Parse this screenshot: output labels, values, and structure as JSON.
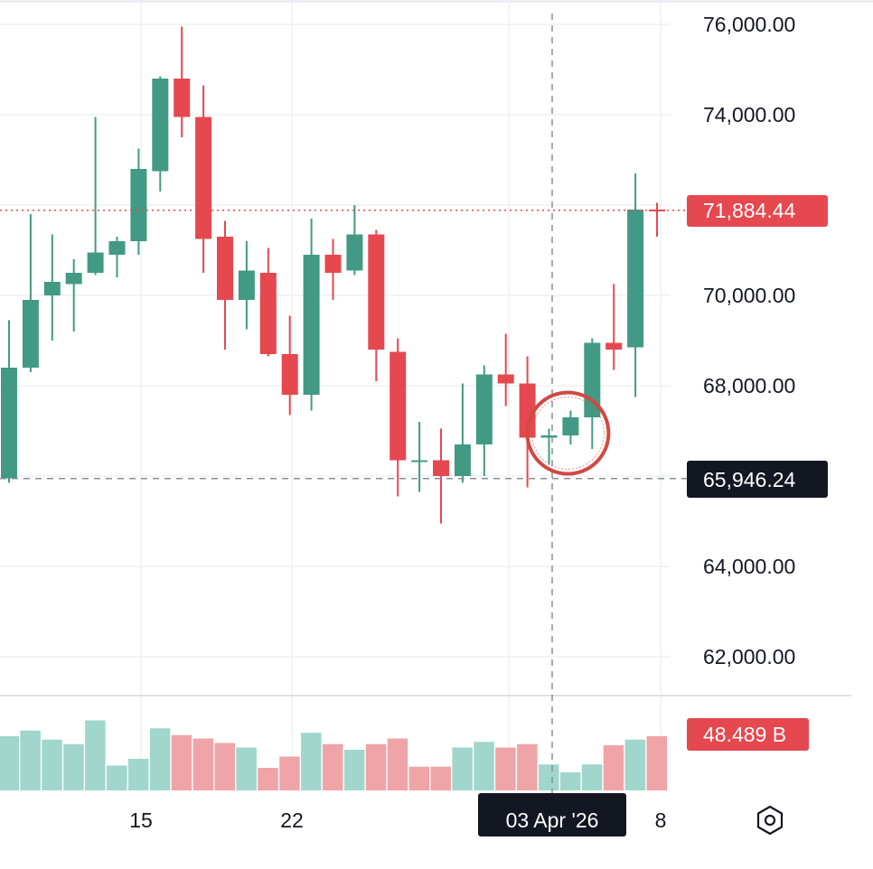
{
  "colors": {
    "up": "#429a84",
    "down": "#e5484f",
    "up_volume": "#a0d6cb",
    "down_volume": "#efa4a7",
    "grid": "#eef0f3",
    "crosshair": "#8a8d94",
    "label_dark": "#131722",
    "annotation": "#d04a43"
  },
  "price_axis": {
    "ticks": [
      "76,000.00",
      "74,000.00",
      "70,000.00",
      "68,000.00",
      "64,000.00",
      "62,000.00"
    ],
    "last_price_label": "71,884.44",
    "crosshair_price_label": "65,946.24",
    "volume_label": "48.489 B"
  },
  "time_axis": {
    "ticks": [
      "15",
      "22",
      "8"
    ],
    "crosshair_date_label": "03 Apr '26"
  },
  "settings_icon": "gear-icon",
  "chart_data": {
    "type": "candlestick",
    "ylim": [
      61000,
      76500
    ],
    "last_price": 71884.44,
    "crosshair": {
      "price": 65946.24,
      "date": "03 Apr '26"
    },
    "candles": [
      {
        "i": 0,
        "o": 65950,
        "h": 69450,
        "l": 65850,
        "c": 68400
      },
      {
        "i": 1,
        "o": 68400,
        "h": 71800,
        "l": 68300,
        "c": 69900
      },
      {
        "i": 2,
        "o": 70000,
        "h": 71350,
        "l": 69000,
        "c": 70300
      },
      {
        "i": 3,
        "o": 70250,
        "h": 70800,
        "l": 69200,
        "c": 70500
      },
      {
        "i": 4,
        "o": 70500,
        "h": 73950,
        "l": 70450,
        "c": 70950
      },
      {
        "i": 5,
        "o": 70900,
        "h": 71300,
        "l": 70400,
        "c": 71200
      },
      {
        "i": 6,
        "o": 71200,
        "h": 73250,
        "l": 70900,
        "c": 72800
      },
      {
        "i": 7,
        "o": 72750,
        "h": 74850,
        "l": 72300,
        "c": 74800
      },
      {
        "i": 8,
        "o": 74800,
        "h": 75950,
        "l": 73500,
        "c": 73950
      },
      {
        "i": 9,
        "o": 73950,
        "h": 74650,
        "l": 70500,
        "c": 71250
      },
      {
        "i": 10,
        "o": 71300,
        "h": 71650,
        "l": 68800,
        "c": 69900
      },
      {
        "i": 11,
        "o": 69900,
        "h": 71200,
        "l": 69250,
        "c": 70550
      },
      {
        "i": 12,
        "o": 70500,
        "h": 71050,
        "l": 68650,
        "c": 68700
      },
      {
        "i": 13,
        "o": 68700,
        "h": 69550,
        "l": 67350,
        "c": 67800
      },
      {
        "i": 14,
        "o": 67800,
        "h": 71700,
        "l": 67450,
        "c": 70900
      },
      {
        "i": 15,
        "o": 70900,
        "h": 71250,
        "l": 69900,
        "c": 70500
      },
      {
        "i": 16,
        "o": 70550,
        "h": 72000,
        "l": 70450,
        "c": 71350
      },
      {
        "i": 17,
        "o": 71350,
        "h": 71450,
        "l": 68100,
        "c": 68800
      },
      {
        "i": 18,
        "o": 68750,
        "h": 69050,
        "l": 65550,
        "c": 66350
      },
      {
        "i": 19,
        "o": 66350,
        "h": 67200,
        "l": 65650,
        "c": 66350
      },
      {
        "i": 20,
        "o": 66350,
        "h": 67050,
        "l": 64950,
        "c": 66000
      },
      {
        "i": 21,
        "o": 66000,
        "h": 68050,
        "l": 65850,
        "c": 66700
      },
      {
        "i": 22,
        "o": 66700,
        "h": 68450,
        "l": 66000,
        "c": 68250
      },
      {
        "i": 23,
        "o": 68250,
        "h": 69150,
        "l": 67550,
        "c": 68050
      },
      {
        "i": 24,
        "o": 68050,
        "h": 68650,
        "l": 65750,
        "c": 66850
      },
      {
        "i": 25,
        "o": 66850,
        "h": 67050,
        "l": 66250,
        "c": 66900
      },
      {
        "i": 26,
        "o": 66900,
        "h": 67450,
        "l": 66700,
        "c": 67300
      },
      {
        "i": 27,
        "o": 67300,
        "h": 69050,
        "l": 66600,
        "c": 68950
      },
      {
        "i": 28,
        "o": 68950,
        "h": 70250,
        "l": 68350,
        "c": 68800
      },
      {
        "i": 29,
        "o": 68850,
        "h": 72700,
        "l": 67750,
        "c": 71900
      },
      {
        "i": 30,
        "o": 71900,
        "h": 72050,
        "l": 71300,
        "c": 71884.44
      }
    ],
    "volume": [
      {
        "i": 0,
        "v": 0.48,
        "dir": "up"
      },
      {
        "i": 1,
        "v": 0.53,
        "dir": "up"
      },
      {
        "i": 2,
        "v": 0.45,
        "dir": "up"
      },
      {
        "i": 3,
        "v": 0.41,
        "dir": "up"
      },
      {
        "i": 4,
        "v": 0.62,
        "dir": "up"
      },
      {
        "i": 5,
        "v": 0.22,
        "dir": "up"
      },
      {
        "i": 6,
        "v": 0.28,
        "dir": "up"
      },
      {
        "i": 7,
        "v": 0.55,
        "dir": "up"
      },
      {
        "i": 8,
        "v": 0.49,
        "dir": "down"
      },
      {
        "i": 9,
        "v": 0.46,
        "dir": "down"
      },
      {
        "i": 10,
        "v": 0.42,
        "dir": "down"
      },
      {
        "i": 11,
        "v": 0.38,
        "dir": "up"
      },
      {
        "i": 12,
        "v": 0.2,
        "dir": "down"
      },
      {
        "i": 13,
        "v": 0.3,
        "dir": "down"
      },
      {
        "i": 14,
        "v": 0.51,
        "dir": "up"
      },
      {
        "i": 15,
        "v": 0.41,
        "dir": "down"
      },
      {
        "i": 16,
        "v": 0.36,
        "dir": "up"
      },
      {
        "i": 17,
        "v": 0.41,
        "dir": "down"
      },
      {
        "i": 18,
        "v": 0.46,
        "dir": "down"
      },
      {
        "i": 19,
        "v": 0.21,
        "dir": "down"
      },
      {
        "i": 20,
        "v": 0.21,
        "dir": "down"
      },
      {
        "i": 21,
        "v": 0.38,
        "dir": "up"
      },
      {
        "i": 22,
        "v": 0.43,
        "dir": "up"
      },
      {
        "i": 23,
        "v": 0.38,
        "dir": "down"
      },
      {
        "i": 24,
        "v": 0.41,
        "dir": "down"
      },
      {
        "i": 25,
        "v": 0.23,
        "dir": "up"
      },
      {
        "i": 26,
        "v": 0.16,
        "dir": "up"
      },
      {
        "i": 27,
        "v": 0.23,
        "dir": "up"
      },
      {
        "i": 28,
        "v": 0.4,
        "dir": "down"
      },
      {
        "i": 29,
        "v": 0.45,
        "dir": "up"
      },
      {
        "i": 30,
        "v": 0.48,
        "dir": "down"
      }
    ],
    "annotation": {
      "type": "circle",
      "center_candle": 26,
      "price": 66950
    }
  }
}
